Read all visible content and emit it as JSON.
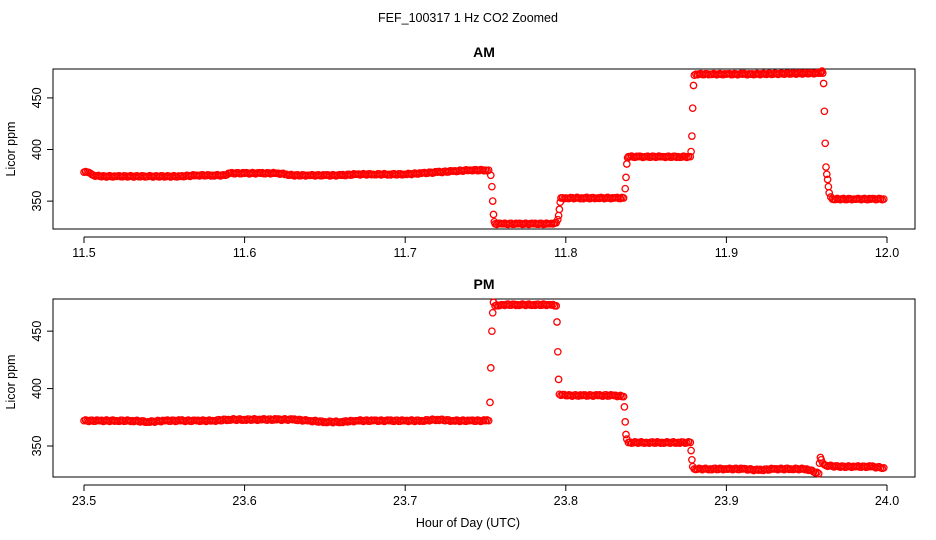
{
  "figure": {
    "suptitle": "FEF_100317  1 Hz CO2 Zoomed",
    "xlabel": "Hour of Day (UTC)",
    "colors": {
      "points": "#ff0000",
      "axes": "#000000",
      "background": "#ffffff"
    }
  },
  "chart_data": [
    {
      "type": "scatter",
      "title": "AM",
      "xlabel": "",
      "ylabel": "Licor ppm",
      "xlim": [
        11.5,
        12.0
      ],
      "ylim": [
        323,
        478
      ],
      "xticks": [
        11.5,
        11.6,
        11.7,
        11.8,
        11.9,
        12.0
      ],
      "xtick_labels": [
        "11.5",
        "11.6",
        "11.7",
        "11.8",
        "11.9",
        "12.0"
      ],
      "yticks": [
        350,
        400,
        450
      ],
      "ytick_labels": [
        "350",
        "400",
        "450"
      ],
      "grid": false,
      "marker": "open-circle",
      "series": [
        {
          "points": [
            [
              11.5,
              378
            ],
            [
              11.502,
              378
            ],
            [
              11.504,
              377
            ],
            [
              11.506,
              375
            ],
            [
              11.51,
              374
            ],
            [
              11.52,
              374
            ],
            [
              11.54,
              374
            ],
            [
              11.56,
              374
            ],
            [
              11.57,
              375
            ],
            [
              11.58,
              375
            ],
            [
              11.588,
              375
            ],
            [
              11.59,
              377
            ],
            [
              11.6,
              377
            ],
            [
              11.61,
              377
            ],
            [
              11.62,
              377
            ],
            [
              11.626,
              376
            ],
            [
              11.63,
              375
            ],
            [
              11.64,
              375
            ],
            [
              11.65,
              375
            ],
            [
              11.66,
              375
            ],
            [
              11.67,
              376
            ],
            [
              11.68,
              376
            ],
            [
              11.69,
              376
            ],
            [
              11.7,
              376
            ],
            [
              11.71,
              377
            ],
            [
              11.72,
              378
            ],
            [
              11.73,
              379
            ],
            [
              11.74,
              380
            ],
            [
              11.75,
              380
            ],
            [
              11.752,
              380
            ],
            [
              11.7533,
              375
            ],
            [
              11.754,
              364
            ],
            [
              11.7545,
              350
            ],
            [
              11.755,
              337
            ],
            [
              11.7555,
              330
            ],
            [
              11.756,
              328
            ],
            [
              11.76,
              328
            ],
            [
              11.77,
              328
            ],
            [
              11.78,
              328
            ],
            [
              11.79,
              328
            ],
            [
              11.794,
              329
            ],
            [
              11.795,
              332
            ],
            [
              11.7955,
              336
            ],
            [
              11.796,
              342
            ],
            [
              11.7965,
              349
            ],
            [
              11.797,
              353
            ],
            [
              11.8,
              353
            ],
            [
              11.81,
              353
            ],
            [
              11.82,
              353
            ],
            [
              11.83,
              353
            ],
            [
              11.836,
              353
            ],
            [
              11.837,
              362
            ],
            [
              11.8375,
              373
            ],
            [
              11.838,
              386
            ],
            [
              11.8385,
              392
            ],
            [
              11.839,
              393
            ],
            [
              11.845,
              393
            ],
            [
              11.85,
              393
            ],
            [
              11.86,
              393
            ],
            [
              11.87,
              393
            ],
            [
              11.8775,
              393
            ],
            [
              11.878,
              398
            ],
            [
              11.8785,
              413
            ],
            [
              11.879,
              440
            ],
            [
              11.8795,
              462
            ],
            [
              11.88,
              472
            ],
            [
              11.881,
              473
            ],
            [
              11.89,
              473
            ],
            [
              11.9,
              473
            ],
            [
              11.91,
              473
            ],
            [
              11.915,
              473
            ],
            [
              11.9585,
              474
            ],
            [
              11.959,
              475
            ],
            [
              11.9595,
              476
            ],
            [
              11.96,
              474
            ],
            [
              11.9605,
              464
            ],
            [
              11.961,
              437
            ],
            [
              11.9615,
              406
            ],
            [
              11.962,
              383
            ],
            [
              11.9625,
              376
            ],
            [
              11.963,
              371
            ],
            [
              11.9635,
              364
            ],
            [
              11.964,
              358
            ],
            [
              11.965,
              354
            ],
            [
              11.966,
              352
            ],
            [
              11.97,
              352
            ],
            [
              11.98,
              352
            ],
            [
              11.99,
              352
            ],
            [
              11.998,
              352
            ]
          ]
        }
      ]
    },
    {
      "type": "scatter",
      "title": "PM",
      "xlabel": "Hour of Day (UTC)",
      "ylabel": "Licor ppm",
      "xlim": [
        23.5,
        24.0
      ],
      "ylim": [
        323,
        478
      ],
      "xticks": [
        23.5,
        23.6,
        23.7,
        23.8,
        23.9,
        24.0
      ],
      "xtick_labels": [
        "23.5",
        "23.6",
        "23.7",
        "23.8",
        "23.9",
        "24.0"
      ],
      "yticks": [
        350,
        400,
        450
      ],
      "ytick_labels": [
        "350",
        "400",
        "450"
      ],
      "grid": false,
      "marker": "open-circle",
      "series": [
        {
          "points": [
            [
              23.5,
              372
            ],
            [
              23.51,
              372
            ],
            [
              23.52,
              372
            ],
            [
              23.53,
              372
            ],
            [
              23.54,
              371
            ],
            [
              23.55,
              372
            ],
            [
              23.56,
              372
            ],
            [
              23.57,
              372
            ],
            [
              23.58,
              372
            ],
            [
              23.59,
              373
            ],
            [
              23.6,
              373
            ],
            [
              23.61,
              373
            ],
            [
              23.62,
              373
            ],
            [
              23.63,
              373
            ],
            [
              23.64,
              372
            ],
            [
              23.65,
              371
            ],
            [
              23.66,
              371
            ],
            [
              23.67,
              372
            ],
            [
              23.68,
              372
            ],
            [
              23.69,
              372
            ],
            [
              23.7,
              372
            ],
            [
              23.71,
              372
            ],
            [
              23.72,
              373
            ],
            [
              23.73,
              372
            ],
            [
              23.74,
              372
            ],
            [
              23.75,
              372
            ],
            [
              23.752,
              372
            ],
            [
              23.7528,
              388
            ],
            [
              23.7533,
              418
            ],
            [
              23.754,
              450
            ],
            [
              23.7545,
              466
            ],
            [
              23.755,
              475
            ],
            [
              23.756,
              472
            ],
            [
              23.76,
              473
            ],
            [
              23.77,
              473
            ],
            [
              23.78,
              473
            ],
            [
              23.79,
              473
            ],
            [
              23.794,
              472
            ],
            [
              23.7945,
              458
            ],
            [
              23.795,
              432
            ],
            [
              23.7955,
              408
            ],
            [
              23.796,
              395
            ],
            [
              23.8,
              394
            ],
            [
              23.81,
              394
            ],
            [
              23.82,
              394
            ],
            [
              23.83,
              394
            ],
            [
              23.836,
              393
            ],
            [
              23.8365,
              384
            ],
            [
              23.837,
              371
            ],
            [
              23.8375,
              360
            ],
            [
              23.838,
              356
            ],
            [
              23.839,
              353
            ],
            [
              23.85,
              353
            ],
            [
              23.86,
              353
            ],
            [
              23.87,
              353
            ],
            [
              23.8775,
              353
            ],
            [
              23.878,
              346
            ],
            [
              23.8785,
              338
            ],
            [
              23.879,
              332
            ],
            [
              23.88,
              330
            ],
            [
              23.89,
              330
            ],
            [
              23.9,
              330
            ],
            [
              23.91,
              330
            ],
            [
              23.92,
              329
            ],
            [
              23.93,
              330
            ],
            [
              23.94,
              330
            ],
            [
              23.95,
              330
            ],
            [
              23.9575,
              326
            ],
            [
              23.958,
              335
            ],
            [
              23.9585,
              340
            ],
            [
              23.959,
              338
            ],
            [
              23.96,
              335
            ],
            [
              23.962,
              333
            ],
            [
              23.97,
              332
            ],
            [
              23.98,
              332
            ],
            [
              23.99,
              332
            ],
            [
              23.998,
              331
            ]
          ]
        }
      ]
    }
  ]
}
